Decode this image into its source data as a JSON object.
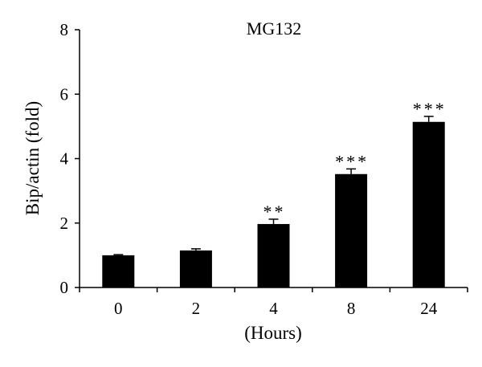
{
  "chart_data": {
    "type": "bar",
    "title": "MG132",
    "xlabel": "(Hours)",
    "ylabel": "Bip/actin (fold)",
    "categories": [
      "0",
      "2",
      "4",
      "8",
      "24"
    ],
    "values": [
      1.0,
      1.15,
      1.97,
      3.52,
      5.14
    ],
    "errors": [
      0.02,
      0.05,
      0.15,
      0.16,
      0.17
    ],
    "significance": [
      "",
      "",
      "**",
      "***",
      "***"
    ],
    "ylim": [
      0,
      8
    ],
    "yticks": [
      "0",
      "2",
      "4",
      "6",
      "8"
    ],
    "grid": false,
    "legend": "none",
    "bar_color": "#000000"
  }
}
